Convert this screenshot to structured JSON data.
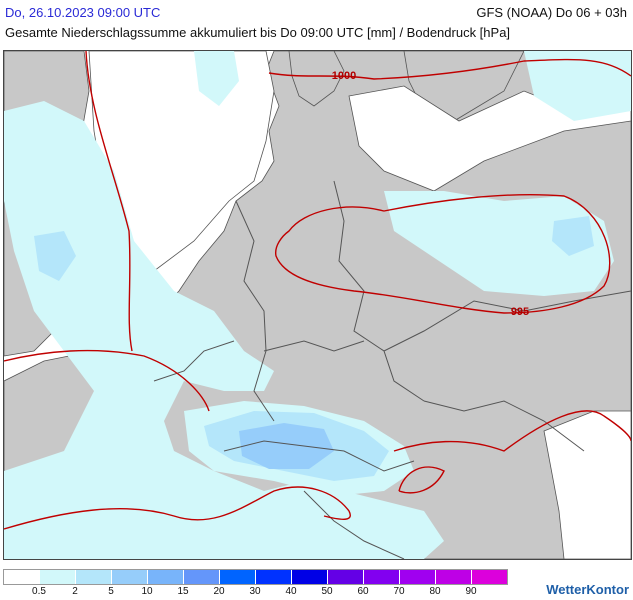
{
  "header": {
    "datetime": "Do, 26.10.2023 09:00 UTC",
    "model": "GFS (NOAA) Do 06 + 03h",
    "subtitle": "Gesamte Niederschlagssumme akkumuliert bis Do 09:00 UTC [mm] / Bodendruck [hPa]"
  },
  "map": {
    "isobars": [
      {
        "label": "1000"
      },
      {
        "label": "995"
      }
    ],
    "colors": {
      "land": "#c8c8c8",
      "sea": "#ffffff",
      "isobar": "#c00000",
      "border": "#555555"
    }
  },
  "legend": {
    "colors": [
      "#ffffff",
      "#d2f8fa",
      "#b4e6fa",
      "#96cdfa",
      "#78b4fa",
      "#6496fa",
      "#0064ff",
      "#0032ff",
      "#0000e6",
      "#6400e6",
      "#8200f0",
      "#a000f0",
      "#be00e6",
      "#dc00dc"
    ],
    "ticks": [
      "0.5",
      "2",
      "5",
      "10",
      "15",
      "20",
      "30",
      "40",
      "50",
      "60",
      "70",
      "80",
      "90"
    ]
  },
  "brand": {
    "name": "WetterKontor"
  }
}
